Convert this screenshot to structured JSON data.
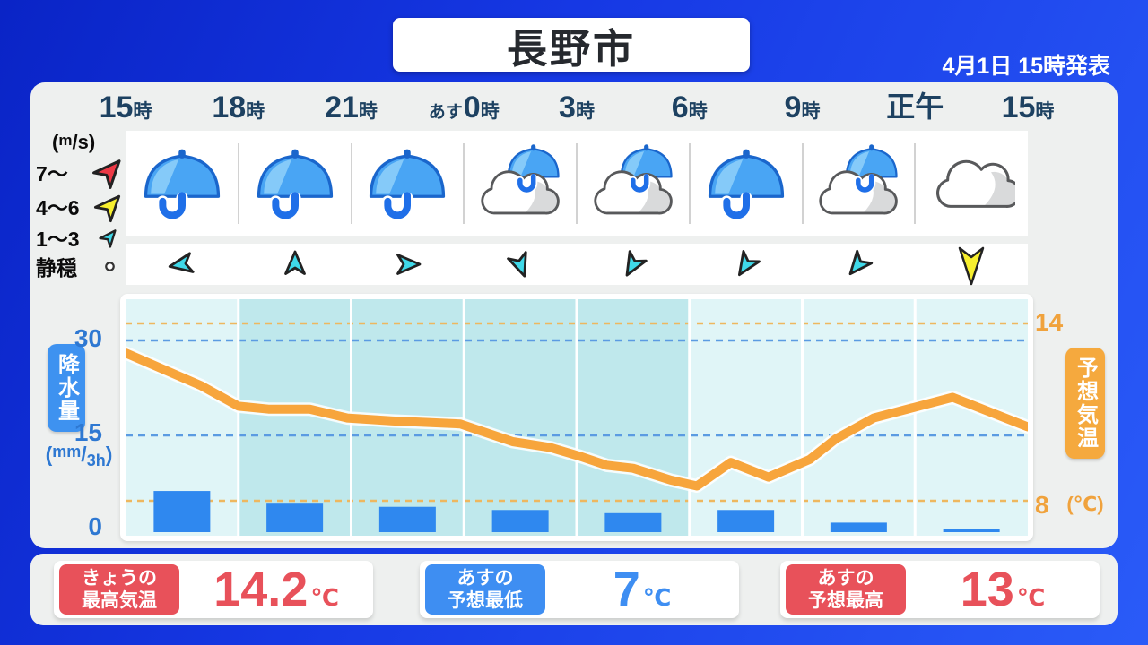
{
  "header": {
    "title": "長野市",
    "announced": "4月1日 15時発表"
  },
  "time_row": [
    {
      "prefix": "",
      "num": "15",
      "suffix": "時"
    },
    {
      "prefix": "",
      "num": "18",
      "suffix": "時"
    },
    {
      "prefix": "",
      "num": "21",
      "suffix": "時"
    },
    {
      "prefix": "あす",
      "num": "0",
      "suffix": "時"
    },
    {
      "prefix": "",
      "num": "3",
      "suffix": "時"
    },
    {
      "prefix": "",
      "num": "6",
      "suffix": "時"
    },
    {
      "prefix": "",
      "num": "9",
      "suffix": "時"
    },
    {
      "prefix": "",
      "num": "正午",
      "suffix": ""
    },
    {
      "prefix": "",
      "num": "15",
      "suffix": "時"
    }
  ],
  "wind_legend": {
    "unit_open": "(",
    "unit_sup": "m",
    "unit_rest": "/s",
    "unit_close": ")",
    "items": [
      {
        "label": "7～",
        "arrow": "red"
      },
      {
        "label": "4～6",
        "arrow": "yellow"
      },
      {
        "label": "1～3",
        "arrow": "cyan-small"
      },
      {
        "label": "静穏",
        "arrow": "calm"
      }
    ]
  },
  "forecast": {
    "weather_icons": [
      "rain",
      "rain",
      "rain",
      "rain-cloud",
      "rain-cloud",
      "rain",
      "rain-cloud",
      "cloudy"
    ],
    "wind": [
      {
        "deg": -100,
        "speed": "1-3"
      },
      {
        "deg": 0,
        "speed": "1-3"
      },
      {
        "deg": 90,
        "speed": "1-3"
      },
      {
        "deg": 160,
        "speed": "1-3"
      },
      {
        "deg": -150,
        "speed": "1-3"
      },
      {
        "deg": -147,
        "speed": "1-3"
      },
      {
        "deg": -140,
        "speed": "1-3"
      },
      {
        "deg": 180,
        "speed": "4-6"
      }
    ]
  },
  "axes": {
    "left": {
      "title": "降水量",
      "unit_open": "(",
      "unit_sup": "mm",
      "unit_slash": "/",
      "unit_sub": "3h",
      "unit_close": ")"
    },
    "right": {
      "title": "予想気温",
      "unit": "(℃)"
    }
  },
  "chart_data": {
    "type": "mixed",
    "x_axis": {
      "labels": [
        "15時",
        "18時",
        "21時",
        "あす0時",
        "3時",
        "6時",
        "9時",
        "正午",
        "15時"
      ],
      "hours_span": 24
    },
    "night_band": {
      "from": "18時",
      "to": "6時"
    },
    "precip": {
      "name": "降水量",
      "type": "bar",
      "unit": "mm/3h",
      "axis": "left",
      "ticks": [
        0,
        15,
        30
      ],
      "ylim": [
        0,
        37
      ],
      "categories": [
        "15-18時",
        "18-21時",
        "21-24時",
        "0-3時",
        "3-6時",
        "6-9時",
        "9-12時",
        "12-15時"
      ],
      "values": [
        6.5,
        4.5,
        4,
        3.5,
        3,
        3.5,
        1.5,
        0.5
      ]
    },
    "temp": {
      "name": "予想気温",
      "type": "line",
      "unit": "℃",
      "axis": "right",
      "ticks": [
        8,
        14
      ],
      "hours": [
        0,
        2,
        3,
        3.8,
        4.9,
        5.9,
        7.1,
        8.9,
        9.6,
        10.3,
        11.3,
        12.1,
        12.8,
        13.5,
        14.5,
        15.2,
        16.1,
        17.1,
        18.2,
        18.9,
        19.9,
        22,
        24
      ],
      "values": [
        13,
        11.9,
        11.2,
        11.1,
        11.1,
        10.8,
        10.7,
        10.6,
        10.3,
        10,
        9.8,
        9.5,
        9.2,
        9.1,
        8.7,
        8.5,
        9.3,
        8.8,
        9.4,
        10.1,
        10.8,
        11.5,
        10.5
      ]
    }
  },
  "summary_cards": [
    {
      "label_line1": "きょうの",
      "label_line2": "最高気温",
      "value": "14.2",
      "unit": "℃",
      "color": "red"
    },
    {
      "label_line1": "あすの",
      "label_line2": "予想最低",
      "value": "7",
      "unit": "℃",
      "color": "blue"
    },
    {
      "label_line1": "あすの",
      "label_line2": "予想最高",
      "value": "13",
      "unit": "℃",
      "color": "red"
    }
  ],
  "colors": {
    "page_grad_start": "#0a24c6",
    "page_grad_end": "#2a5bf8",
    "panel": "#eef0ef",
    "navy": "#1d4161",
    "tick_blue": "#2e78d2",
    "tick_orange": "#f0a23c",
    "bar_blue": "#2f88ef",
    "box_blue": "#3e92f0",
    "box_orange": "#f5a93e",
    "line_orange": "#f7a53c",
    "grid_orange": "#eeb75f",
    "grid_blue": "#5b9be2",
    "plot_light": "#e0f5f7",
    "plot_dark": "#bfe8ec",
    "red": "#e8515a",
    "blue": "#3e8ef2",
    "arrow_red": "#ee3a47",
    "arrow_yellow": "#f7ef2e",
    "arrow_cyan": "#3fd9e9",
    "umb_dome": "#49a5f4",
    "umb_light": "#85caf9",
    "umb_outline": "#1a66cc",
    "umb_handle": "#1f6fe8",
    "cloud_stroke": "#58595b",
    "cloud_shadow": "#d9dadb"
  }
}
